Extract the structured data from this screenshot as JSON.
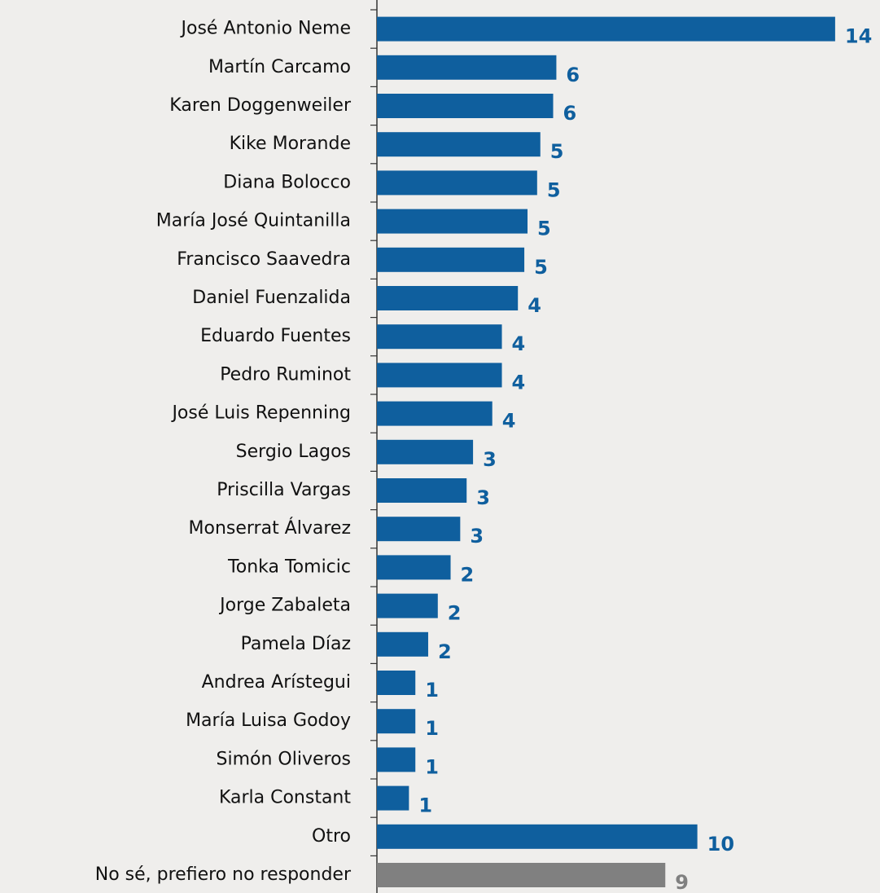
{
  "chart_data": {
    "type": "barh",
    "categories": [
      "José Antonio Neme",
      "Martín Carcamo",
      "Karen Doggenweiler",
      "Kike Morande",
      "Diana Bolocco",
      "María José Quintanilla",
      "Francisco Saavedra",
      "Daniel Fuenzalida",
      "Eduardo Fuentes",
      "Pedro Ruminot",
      "José Luis Repenning",
      "Sergio Lagos",
      "Priscilla Vargas",
      "Monserrat Álvarez",
      "Tonka Tomicic",
      "Jorge Zabaleta",
      "Pamela Díaz",
      "Andrea Arístegui",
      "María Luisa Godoy",
      "Simón Oliveros",
      "Karla Constant",
      "Otro",
      "No sé, prefiero no responder"
    ],
    "values": [
      14.3,
      5.6,
      5.5,
      5.1,
      5.0,
      4.7,
      4.6,
      4.4,
      3.9,
      3.9,
      3.6,
      3.0,
      2.8,
      2.6,
      2.3,
      1.9,
      1.6,
      1.2,
      1.2,
      1.2,
      1.0,
      10.0,
      9.0
    ],
    "value_labels": [
      "14",
      "6",
      "6",
      "5",
      "5",
      "5",
      "5",
      "4",
      "4",
      "4",
      "4",
      "3",
      "3",
      "3",
      "2",
      "2",
      "2",
      "1",
      "1",
      "1",
      "1",
      "10",
      "9"
    ],
    "colors": [
      "#0f5f9e",
      "#0f5f9e",
      "#0f5f9e",
      "#0f5f9e",
      "#0f5f9e",
      "#0f5f9e",
      "#0f5f9e",
      "#0f5f9e",
      "#0f5f9e",
      "#0f5f9e",
      "#0f5f9e",
      "#0f5f9e",
      "#0f5f9e",
      "#0f5f9e",
      "#0f5f9e",
      "#0f5f9e",
      "#0f5f9e",
      "#0f5f9e",
      "#0f5f9e",
      "#0f5f9e",
      "#0f5f9e",
      "#0f5f9e",
      "#808080"
    ],
    "xlim": [
      0,
      15.7
    ]
  }
}
